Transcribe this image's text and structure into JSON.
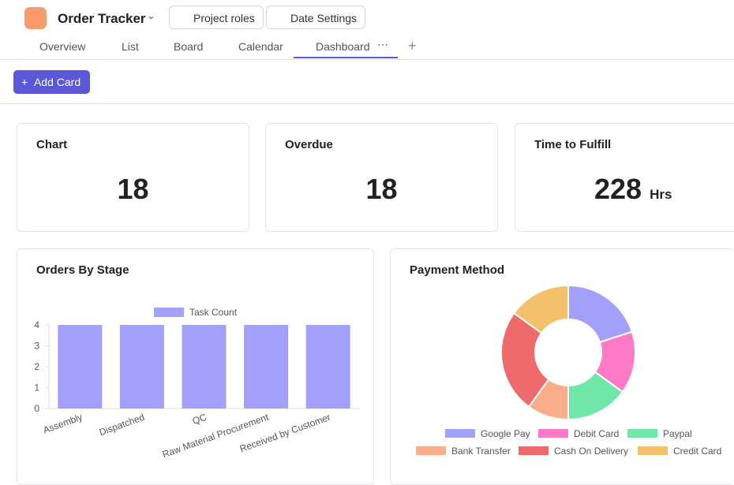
{
  "header": {
    "title": "Order Tracker",
    "buttons": [
      "Project roles",
      "Date Settings"
    ]
  },
  "tabs": {
    "items": [
      "Overview",
      "List",
      "Board",
      "Calendar",
      "Dashboard"
    ],
    "active": 4
  },
  "toolbar": {
    "button": "Add Card"
  },
  "cards": [
    {
      "title": "Chart",
      "value": 18
    },
    {
      "title": "Overdue",
      "value": 18
    },
    {
      "title": "Time to Fulfill",
      "value": 228,
      "unit": "Hrs"
    }
  ],
  "chart_data": [
    {
      "type": "bar",
      "title": "Orders By Stage",
      "categories": [
        "Assembly",
        "Dispatched",
        "QC",
        "Raw Material Procurement",
        "Received by Customer"
      ],
      "series": [
        {
          "name": "Task Count",
          "color": "#a3a0fb",
          "values": [
            4,
            4,
            4,
            4,
            4
          ]
        }
      ],
      "ylim": [
        0,
        4
      ],
      "yticks": [
        0,
        1,
        2,
        3,
        4
      ],
      "legend": "top"
    },
    {
      "type": "pie",
      "title": "Payment Method",
      "categories": [
        "Google Pay",
        "Debit Card",
        "Paypal",
        "Bank Transfer",
        "Cash On Delivery",
        "Credit Card"
      ],
      "values": [
        4,
        3,
        3,
        2,
        5,
        3
      ],
      "colors": [
        "#a3a0fb",
        "#ff7ac6",
        "#6ee7a8",
        "#f9ad8a",
        "#ef6b6b",
        "#f3c06b"
      ],
      "donut": true,
      "legend": "bottom"
    }
  ]
}
